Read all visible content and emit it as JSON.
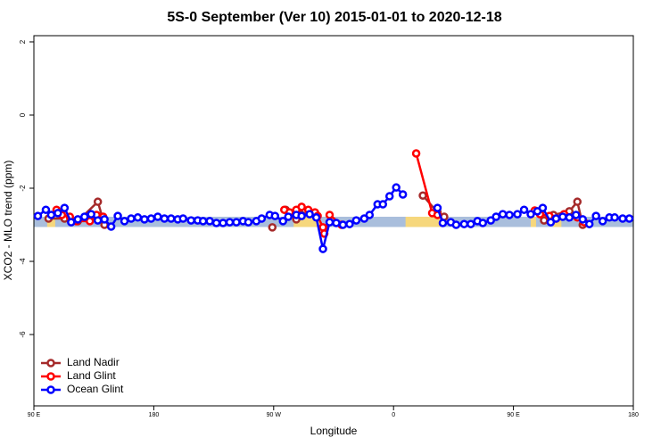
{
  "chart_data": {
    "type": "line",
    "title": "5S-0 September (Ver 10)   2015-01-01 to 2020-12-18",
    "x_label": "Longitude",
    "y_label": "XCO2 - MLO trend (ppm)",
    "xlim": [
      90,
      540
    ],
    "ylim": [
      -7.95,
      2.17
    ],
    "xticks": [
      {
        "value": 90,
        "label": "90 E"
      },
      {
        "value": 180,
        "label": "180"
      },
      {
        "value": 270,
        "label": "90 W"
      },
      {
        "value": 360,
        "label": "0"
      },
      {
        "value": 450,
        "label": "90 E"
      },
      {
        "value": 540,
        "label": "180"
      }
    ],
    "yticks": [
      -6,
      -4,
      -2,
      0,
      2
    ],
    "legend": "bottomleft",
    "band": {
      "ylim": [
        -3.06,
        -2.78
      ],
      "color": "#a9bedc"
    },
    "land_color": "#f6d77c",
    "land_patches": [
      [
        100,
        106
      ],
      [
        285,
        305
      ],
      [
        369,
        396
      ],
      [
        463,
        467
      ],
      [
        480,
        486
      ]
    ],
    "series": [
      {
        "name": "Land Nadir",
        "color": "#a52a2a",
        "x": [
          101,
          113,
          123,
          138,
          143,
          200,
          269,
          274,
          279,
          287,
          291,
          297,
          340,
          382,
          393,
          398,
          430,
          473,
          480,
          492,
          498,
          502
        ],
        "values": [
          -2.83,
          -2.83,
          -2.9,
          -2.37,
          -3.0,
          null,
          -3.07,
          null,
          -2.59,
          -2.85,
          -2.73,
          -2.68,
          null,
          -2.2,
          -2.66,
          -2.78,
          null,
          -2.88,
          -2.73,
          -2.63,
          -2.37,
          -3.0
        ]
      },
      {
        "name": "Land Glint",
        "color": "#ff0000",
        "x": [
          107,
          111,
          117,
          122,
          132,
          137,
          142,
          200,
          278,
          282,
          287,
          291,
          296,
          301,
          303,
          307,
          308,
          312,
          321,
          350,
          377,
          389,
          393,
          430,
          466,
          470,
          477,
          482,
          488,
          498,
          503
        ],
        "values": [
          -2.59,
          -2.73,
          -2.78,
          -2.9,
          -2.9,
          -2.73,
          -2.78,
          null,
          -2.59,
          -2.66,
          -2.59,
          -2.51,
          -2.59,
          -2.66,
          -2.76,
          -3.07,
          -3.24,
          -2.73,
          -3.0,
          null,
          -1.05,
          -2.68,
          -2.73,
          null,
          -2.61,
          -2.71,
          -2.76,
          -2.83,
          -2.71,
          -2.8,
          -2.93
        ]
      },
      {
        "name": "Ocean Glint",
        "color": "#0000ff",
        "x": [
          93,
          99,
          103,
          108,
          113,
          118,
          123,
          128,
          133,
          138,
          143,
          148,
          153,
          158,
          163,
          168,
          173,
          178,
          183,
          188,
          193,
          198,
          202,
          208,
          213,
          217,
          222,
          227,
          232,
          237,
          242,
          247,
          251,
          257,
          261,
          267,
          271,
          277,
          281,
          287,
          291,
          297,
          302,
          307,
          312,
          317,
          322,
          327,
          332,
          338,
          342,
          348,
          352,
          357,
          362,
          367,
          380,
          393,
          397,
          403,
          407,
          413,
          418,
          423,
          427,
          433,
          437,
          442,
          447,
          453,
          458,
          463,
          468,
          472,
          478,
          482,
          487,
          492,
          497,
          502,
          507,
          512,
          517,
          522,
          526,
          532,
          537
        ],
        "values": [
          -2.76,
          -2.59,
          -2.73,
          -2.68,
          -2.54,
          -2.93,
          -2.85,
          -2.78,
          -2.71,
          -2.88,
          -2.85,
          -3.05,
          -2.76,
          -2.9,
          -2.83,
          -2.8,
          -2.85,
          -2.83,
          -2.78,
          -2.83,
          -2.83,
          -2.85,
          -2.83,
          -2.88,
          -2.88,
          -2.9,
          -2.9,
          -2.95,
          -2.95,
          -2.93,
          -2.93,
          -2.9,
          -2.93,
          -2.9,
          -2.83,
          -2.73,
          -2.76,
          -2.9,
          -2.78,
          -2.73,
          -2.76,
          -2.71,
          -2.8,
          -3.66,
          -2.93,
          -2.95,
          -3.0,
          -2.98,
          -2.88,
          -2.83,
          -2.73,
          -2.44,
          -2.44,
          -2.22,
          -1.98,
          -2.17,
          null,
          -2.54,
          -2.95,
          -2.93,
          -3.0,
          -2.98,
          -2.98,
          -2.9,
          -2.95,
          -2.88,
          -2.78,
          -2.71,
          -2.73,
          -2.71,
          -2.59,
          -2.71,
          -2.63,
          -2.54,
          -2.93,
          -2.83,
          -2.78,
          -2.8,
          -2.73,
          -2.85,
          -2.98,
          -2.76,
          -2.9,
          -2.8,
          -2.8,
          -2.83,
          -2.83
        ]
      }
    ]
  }
}
